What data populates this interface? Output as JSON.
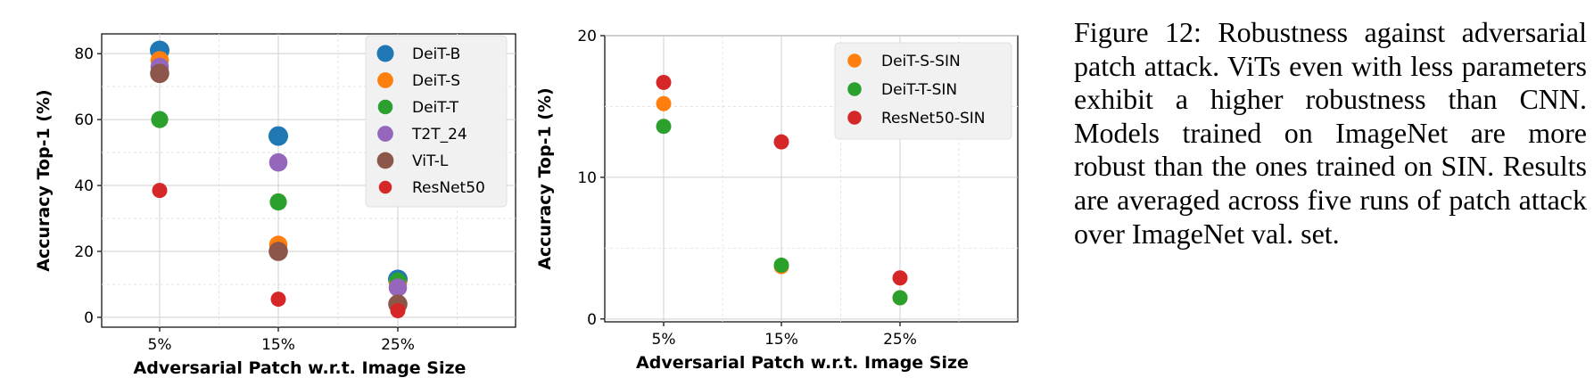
{
  "chart_data": [
    {
      "type": "scatter",
      "title": "",
      "xlabel": "Adversarial Patch w.r.t. Image Size",
      "ylabel": "Accuracy Top-1 (%)",
      "categories": [
        "5%",
        "15%",
        "25%"
      ],
      "ylim": [
        -3,
        86
      ],
      "yticks": [
        0,
        20,
        40,
        60,
        80
      ],
      "grid": true,
      "legend_position": "top-right",
      "series": [
        {
          "name": "DeiT-B",
          "color": "#1f77b4",
          "size": 1.0,
          "values": [
            81,
            55,
            11.5
          ]
        },
        {
          "name": "DeiT-S",
          "color": "#ff7f0e",
          "size": 0.86,
          "values": [
            78,
            22,
            10.5
          ]
        },
        {
          "name": "DeiT-T",
          "color": "#2ca02c",
          "size": 0.72,
          "values": [
            60,
            35,
            11
          ]
        },
        {
          "name": "T2T_24",
          "color": "#9467bd",
          "size": 0.86,
          "values": [
            76,
            47,
            9
          ]
        },
        {
          "name": "ViT-L",
          "color": "#8c564b",
          "size": 0.96,
          "values": [
            74,
            20,
            4
          ]
        },
        {
          "name": "ResNet50",
          "color": "#d62728",
          "size": 0.5,
          "values": [
            38.5,
            5.5,
            2
          ]
        }
      ]
    },
    {
      "type": "scatter",
      "title": "",
      "xlabel": "Adversarial Patch w.r.t. Image Size",
      "ylabel": "Accuracy Top-1 (%)",
      "categories": [
        "5%",
        "15%",
        "25%"
      ],
      "ylim": [
        -0.2,
        20
      ],
      "yticks": [
        0,
        10,
        20
      ],
      "grid": true,
      "legend_position": "top-right",
      "series": [
        {
          "name": "DeiT-S-SIN",
          "color": "#ff7f0e",
          "size": 0.5,
          "values": [
            15.2,
            3.7,
            1.5
          ]
        },
        {
          "name": "DeiT-T-SIN",
          "color": "#2ca02c",
          "size": 0.5,
          "values": [
            13.6,
            3.8,
            1.5
          ]
        },
        {
          "name": "ResNet50-SIN",
          "color": "#d62728",
          "size": 0.5,
          "values": [
            16.7,
            12.5,
            2.9
          ]
        }
      ]
    }
  ],
  "caption": "Figure 12: Robustness against adversarial patch attack. ViTs even with less parameters exhibit a higher robustness than CNN. Models trained on ImageNet are more robust than the ones trained on SIN. Results are averaged across five runs of patch attack over ImageNet val. set."
}
